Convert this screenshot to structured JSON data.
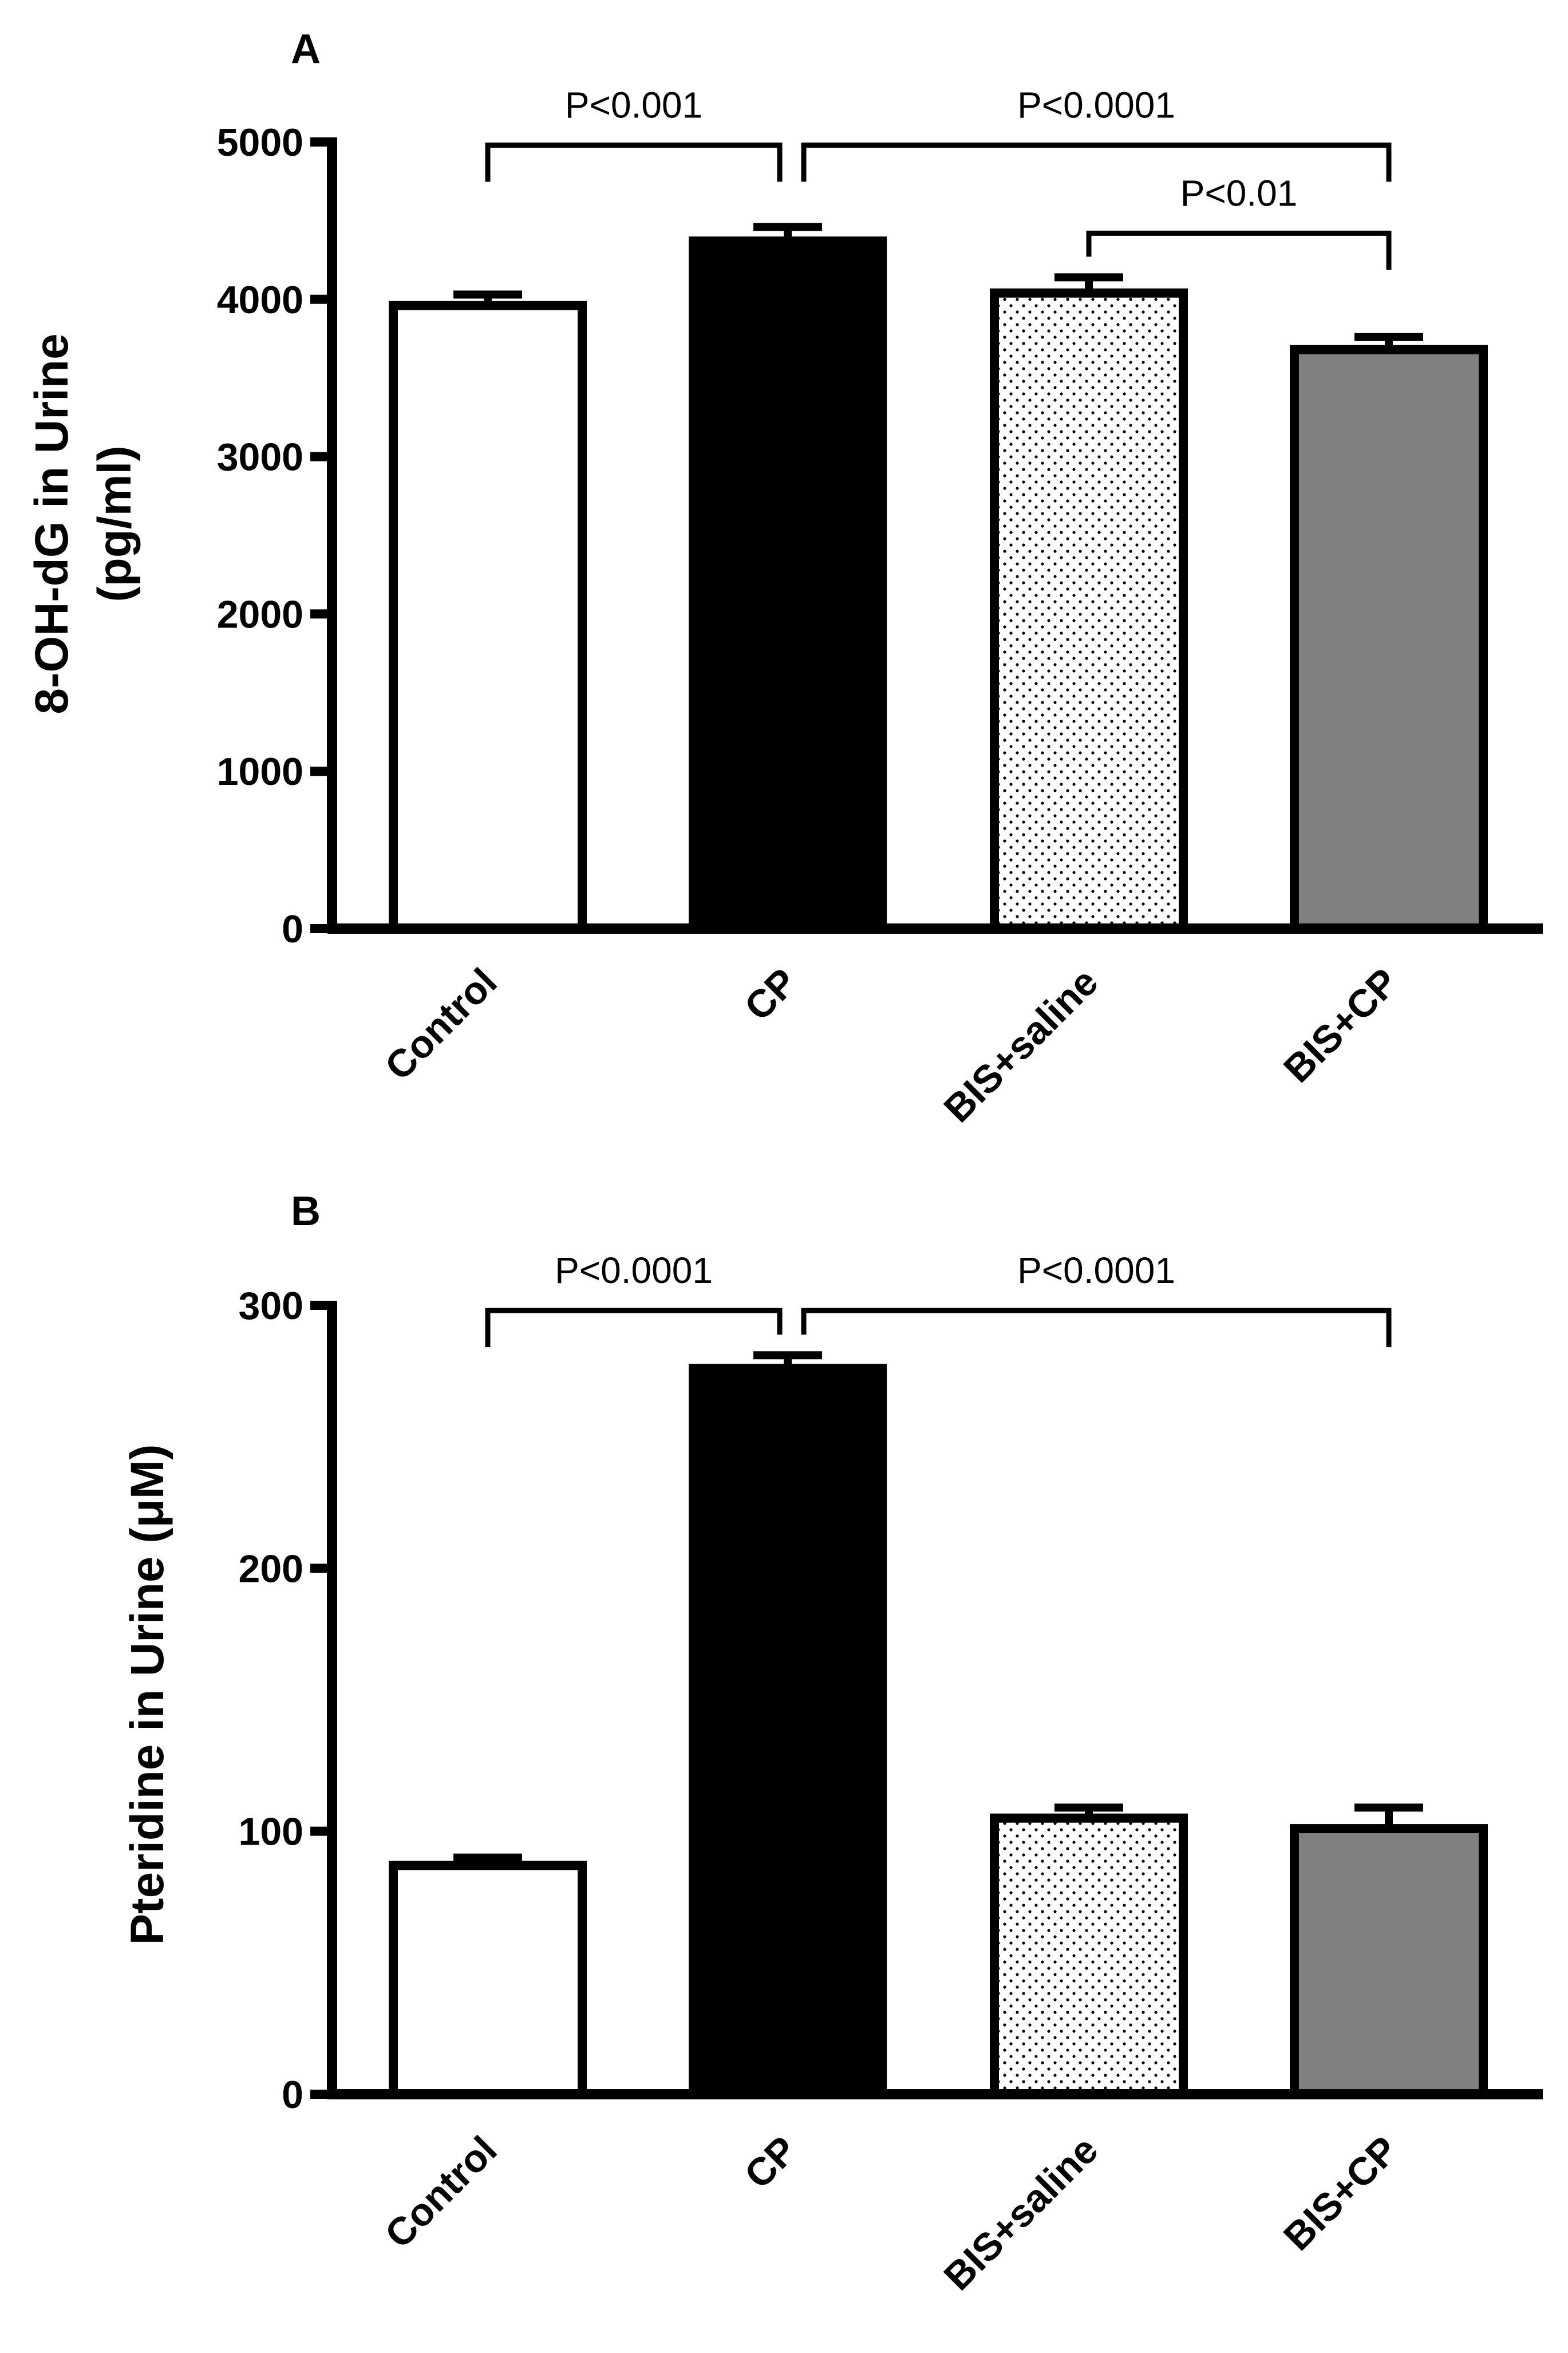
{
  "chart_data": [
    {
      "panel": "A",
      "type": "bar",
      "ylabel_line1": "8-OH-dG in Urine",
      "ylabel_line2": "(pg/ml)",
      "xlabel": "",
      "ylim": [
        0,
        5000
      ],
      "yticks": [
        0,
        1000,
        2000,
        3000,
        4000,
        5000
      ],
      "categories": [
        "Control",
        "CP",
        "BIS+saline",
        "BIS+CP"
      ],
      "values": [
        3960,
        4370,
        4040,
        3680
      ],
      "errors": [
        70,
        90,
        100,
        80
      ],
      "fills": [
        "white",
        "black",
        "dots",
        "gray"
      ],
      "comparisons": [
        {
          "from": 0,
          "to": 1,
          "label": "P<0.001",
          "level": 4980
        },
        {
          "from": 1,
          "to": 3,
          "label": "P<0.0001",
          "level": 4980
        },
        {
          "from": 2,
          "to": 3,
          "label": "P<0.01",
          "level": 4420
        }
      ]
    },
    {
      "panel": "B",
      "type": "bar",
      "ylabel": "Pteridine in Urine (μM)",
      "xlabel": "",
      "ylim": [
        0,
        300
      ],
      "yticks": [
        0,
        100,
        200,
        300
      ],
      "categories": [
        "Control",
        "CP",
        "BIS+saline",
        "BIS+CP"
      ],
      "values": [
        87,
        276,
        105,
        101
      ],
      "errors": [
        3,
        5,
        4,
        8
      ],
      "fills": [
        "white",
        "black",
        "dots",
        "gray"
      ],
      "comparisons": [
        {
          "from": 0,
          "to": 1,
          "label": "P<0.0001",
          "level": 298
        },
        {
          "from": 1,
          "to": 3,
          "label": "P<0.0001",
          "level": 298
        }
      ]
    }
  ],
  "colors": {
    "black": "#000000",
    "gray": "#808080",
    "white": "#ffffff"
  }
}
